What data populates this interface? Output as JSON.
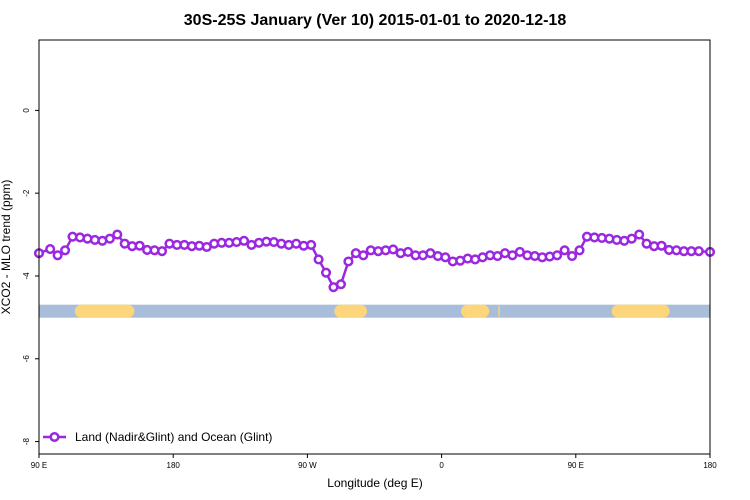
{
  "chart_data": {
    "type": "line",
    "title": "30S-25S January (Ver 10)   2015-01-01 to 2020-12-18",
    "xlabel": "Longitude (deg E)",
    "ylabel": "XCO2 - MLO trend (ppm)",
    "xlim": [
      90,
      540
    ],
    "ylim": [
      -8.3,
      1.7
    ],
    "xticks": [
      {
        "value": 90,
        "label": "90 E"
      },
      {
        "value": 180,
        "label": "180"
      },
      {
        "value": 270,
        "label": "90 W"
      },
      {
        "value": 360,
        "label": "0"
      },
      {
        "value": 450,
        "label": "90 E"
      },
      {
        "value": 540,
        "label": "180"
      }
    ],
    "yticks": [
      {
        "value": 0,
        "label": "0"
      },
      {
        "value": -2,
        "label": "-2"
      },
      {
        "value": -4,
        "label": "-4"
      },
      {
        "value": -6,
        "label": "-6"
      },
      {
        "value": -8,
        "label": "-8"
      }
    ],
    "series": [
      {
        "name": "Land (Nadir&Glint) and Ocean (Glint)",
        "color": "#9b27e0",
        "x": [
          90,
          97.5,
          102.5,
          107.5,
          112.5,
          117.5,
          122.5,
          127.5,
          132.5,
          137.5,
          142.5,
          147.5,
          152.5,
          157.5,
          162.5,
          167.5,
          172.5,
          177.5,
          182.5,
          187.5,
          192.5,
          197.5,
          202.5,
          207.5,
          212.5,
          217.5,
          222.5,
          227.5,
          232.5,
          237.5,
          242.5,
          247.5,
          252.5,
          257.5,
          262.5,
          267.5,
          272.5,
          277.5,
          282.5,
          287.5,
          292.5,
          297.5,
          302.5,
          307.5,
          312.5,
          317.5,
          322.5,
          327.5,
          332.5,
          337.5,
          342.5,
          347.5,
          352.5,
          357.5,
          362.5,
          367.5,
          372.5,
          377.5,
          382.5,
          387.5,
          392.5,
          397.5,
          402.5,
          407.5,
          412.5,
          417.5,
          422.5,
          427.5,
          432.5,
          437.5,
          442.5,
          447.5,
          452.5,
          457.5,
          462.5,
          467.5,
          472.5,
          477.5,
          482.5,
          487.5,
          492.5,
          497.5,
          502.5,
          507.5,
          512.5,
          517.5,
          522.5,
          527.5,
          532.5,
          540
        ],
        "y": [
          -3.45,
          -3.35,
          -3.5,
          -3.38,
          -3.05,
          -3.07,
          -3.1,
          -3.13,
          -3.15,
          -3.1,
          -3.0,
          -3.22,
          -3.28,
          -3.27,
          -3.37,
          -3.38,
          -3.4,
          -3.22,
          -3.25,
          -3.25,
          -3.28,
          -3.27,
          -3.3,
          -3.22,
          -3.2,
          -3.2,
          -3.18,
          -3.15,
          -3.25,
          -3.2,
          -3.17,
          -3.18,
          -3.22,
          -3.25,
          -3.22,
          -3.27,
          -3.25,
          -3.6,
          -3.92,
          -4.27,
          -4.2,
          -3.65,
          -3.45,
          -3.5,
          -3.38,
          -3.4,
          -3.38,
          -3.36,
          -3.45,
          -3.42,
          -3.5,
          -3.5,
          -3.45,
          -3.52,
          -3.55,
          -3.65,
          -3.63,
          -3.58,
          -3.6,
          -3.55,
          -3.5,
          -3.52,
          -3.45,
          -3.5,
          -3.42,
          -3.5,
          -3.52,
          -3.55,
          -3.53,
          -3.5,
          -3.38,
          -3.52,
          -3.38,
          -3.05,
          -3.07,
          -3.08,
          -3.1,
          -3.13,
          -3.15,
          -3.1,
          -3.0,
          -3.22,
          -3.28,
          -3.27,
          -3.37,
          -3.38,
          -3.4,
          -3.4,
          -3.4,
          -3.42
        ]
      }
    ],
    "band": {
      "y": -4.85,
      "ocean_color": "#a7bdd9",
      "land_color": "#fdd57a",
      "land_ranges": [
        [
          114,
          154
        ],
        [
          288,
          310
        ],
        [
          373,
          392
        ],
        [
          398,
          399
        ],
        [
          474,
          513
        ]
      ]
    },
    "grid": false,
    "legend": {
      "placement": "bottom-left"
    }
  }
}
